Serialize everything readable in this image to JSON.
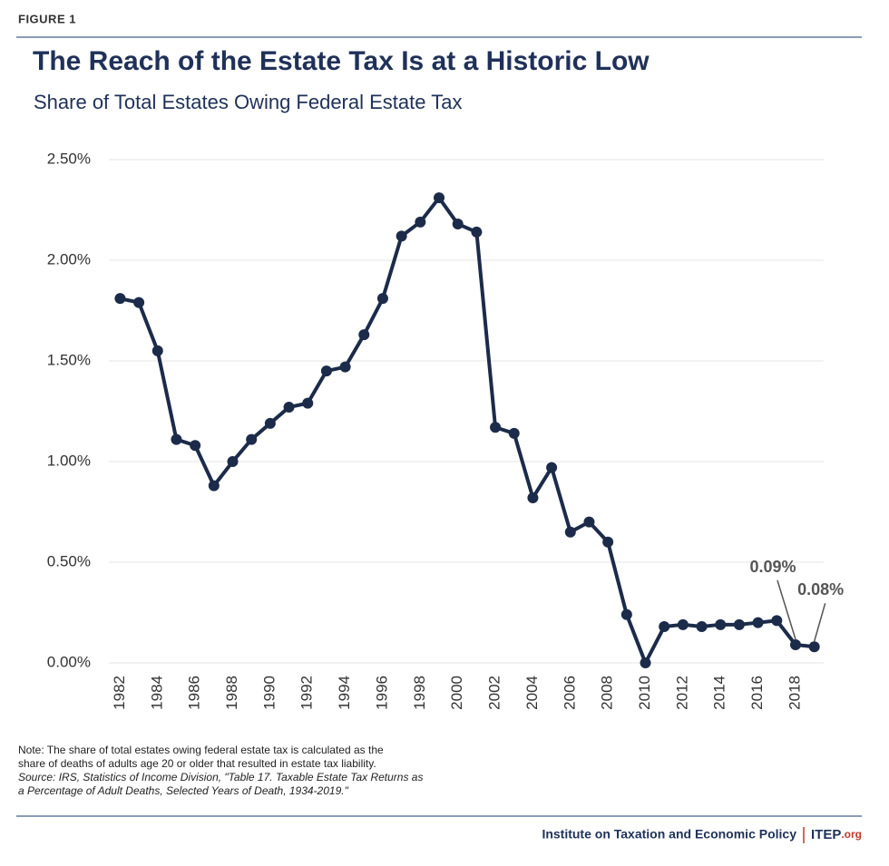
{
  "header": {
    "figure_label": "FIGURE 1"
  },
  "chart_data": {
    "type": "line",
    "title": "The Reach of the Estate Tax Is at a Historic Low",
    "subtitle": "Share of Total Estates Owing Federal Estate Tax",
    "x": [
      1982,
      1983,
      1984,
      1985,
      1986,
      1987,
      1988,
      1989,
      1990,
      1991,
      1992,
      1993,
      1994,
      1995,
      1996,
      1997,
      1998,
      1999,
      2000,
      2001,
      2002,
      2003,
      2004,
      2005,
      2006,
      2007,
      2008,
      2009,
      2010,
      2011,
      2012,
      2013,
      2014,
      2015,
      2016,
      2017,
      2018,
      2019
    ],
    "values": [
      1.81,
      1.79,
      1.55,
      1.11,
      1.08,
      0.88,
      1.0,
      1.11,
      1.19,
      1.27,
      1.29,
      1.45,
      1.47,
      1.63,
      1.81,
      2.12,
      2.19,
      2.31,
      2.18,
      2.14,
      1.17,
      1.14,
      0.82,
      0.97,
      0.65,
      0.7,
      0.6,
      0.24,
      0.0,
      0.18,
      0.19,
      0.18,
      0.19,
      0.19,
      0.2,
      0.21,
      0.09,
      0.08
    ],
    "value_labels": [
      null,
      null,
      null,
      null,
      null,
      null,
      null,
      null,
      null,
      null,
      null,
      null,
      null,
      null,
      null,
      null,
      null,
      null,
      null,
      null,
      null,
      null,
      null,
      null,
      null,
      null,
      null,
      null,
      null,
      null,
      null,
      null,
      null,
      null,
      null,
      null,
      "0.09%",
      "0.08%"
    ],
    "color": "#1c2b4a",
    "xlim": [
      1981.4,
      2019.5
    ],
    "xticks": [
      1982,
      1984,
      1986,
      1988,
      1990,
      1992,
      1994,
      1996,
      1998,
      2000,
      2002,
      2004,
      2006,
      2008,
      2010,
      2012,
      2014,
      2016,
      2018
    ],
    "ylim": [
      0,
      2.5
    ],
    "yticks": [
      {
        "value": 0,
        "label": "0.00%"
      },
      {
        "value": 0.5,
        "label": "0.50%"
      },
      {
        "value": 1,
        "label": "1.00%"
      },
      {
        "value": 1.5,
        "label": "1.50%"
      },
      {
        "value": 2,
        "label": "2.00%"
      },
      {
        "value": 2.5,
        "label": "2.50%"
      }
    ],
    "grid": true
  },
  "notes": [
    "Note: The share of total estates owing federal estate tax is calculated as the",
    "share of deaths of adults age 20 or older that resulted in estate tax liability."
  ],
  "source": [
    "Source: IRS, Statistics of Income Division, \"Table 17.  Taxable Estate Tax Returns as",
    "a Percentage of Adult Deaths, Selected Years of Death, 1934-2019.\""
  ],
  "footer": {
    "organization": "Institute on Taxation and Economic Policy",
    "brand": "ITEP",
    "domain": ".org"
  }
}
